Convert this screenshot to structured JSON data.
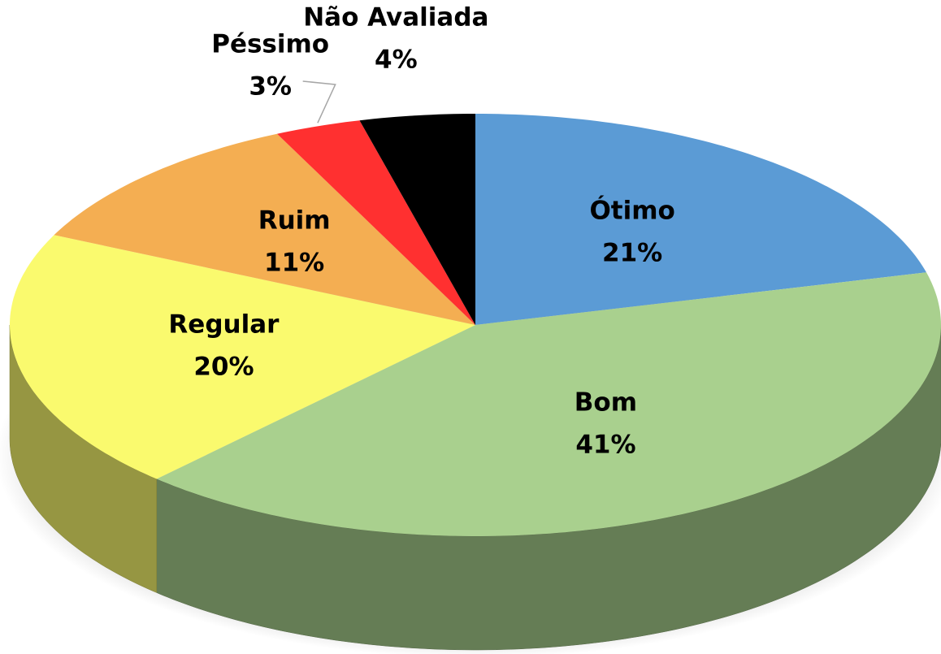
{
  "chart_data": {
    "type": "pie3d",
    "categories": [
      "Ótimo",
      "Bom",
      "Regular",
      "Ruim",
      "Péssimo",
      "Não Avaliada"
    ],
    "values": [
      21,
      41,
      20,
      11,
      3,
      4
    ],
    "value_labels": [
      "21%",
      "41%",
      "20%",
      "11%",
      "3%",
      "4%"
    ],
    "colors": [
      "#5b9bd5",
      "#a9d08e",
      "#fafa6e",
      "#f4ae52",
      "#ff3030",
      "#000000"
    ]
  }
}
